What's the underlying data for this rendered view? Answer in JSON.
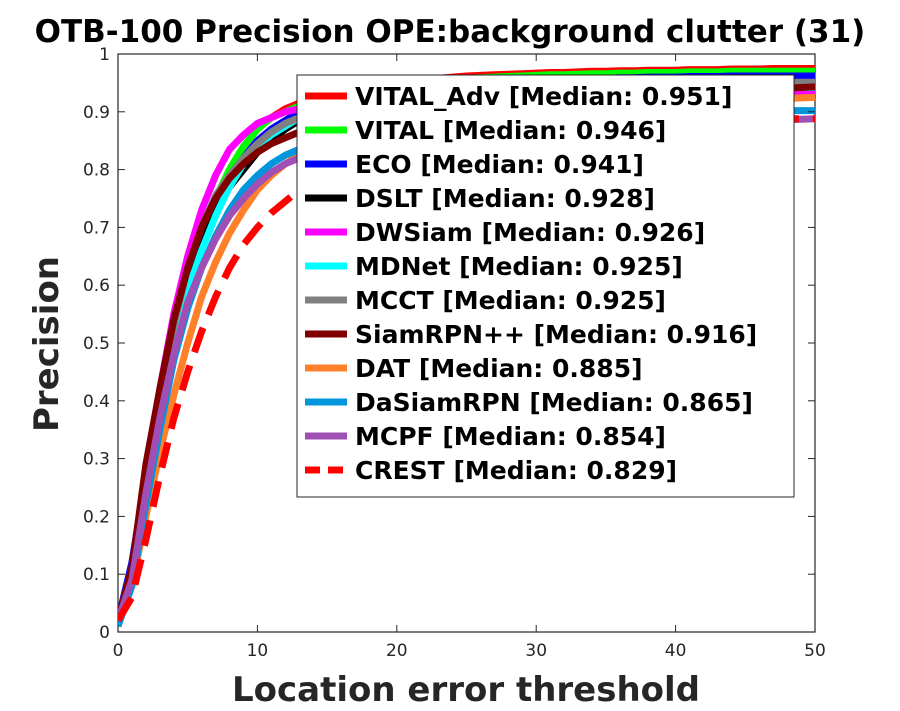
{
  "chart_data": {
    "type": "line",
    "title": "OTB-100 Precision OPE:background clutter (31)",
    "xlabel": "Location error threshold",
    "ylabel": "Precision",
    "xlim": [
      0,
      50
    ],
    "ylim": [
      0,
      1
    ],
    "xticks": [
      "0",
      "10",
      "20",
      "30",
      "40",
      "50"
    ],
    "yticks": [
      "0",
      "0.1",
      "0.2",
      "0.3",
      "0.4",
      "0.5",
      "0.6",
      "0.7",
      "0.8",
      "0.9",
      "1"
    ],
    "grid": false,
    "legend_position": "top-right",
    "x": [
      0,
      1,
      2,
      3,
      4,
      5,
      6,
      7,
      8,
      9,
      10,
      11,
      12,
      13,
      14,
      15,
      16,
      17,
      18,
      19,
      20,
      21,
      22,
      23,
      24,
      25,
      26,
      27,
      28,
      29,
      30,
      31,
      32,
      33,
      34,
      35,
      36,
      37,
      38,
      39,
      40,
      41,
      42,
      43,
      44,
      45,
      46,
      47,
      48,
      49,
      50
    ],
    "series": [
      {
        "name": "VITAL_Adv [Median: 0.951]",
        "color": "#ff0000",
        "dashed": false,
        "values": [
          0.02,
          0.1,
          0.25,
          0.38,
          0.5,
          0.6,
          0.69,
          0.75,
          0.8,
          0.84,
          0.87,
          0.89,
          0.905,
          0.915,
          0.925,
          0.932,
          0.938,
          0.943,
          0.947,
          0.95,
          0.952,
          0.954,
          0.956,
          0.958,
          0.96,
          0.962,
          0.963,
          0.964,
          0.965,
          0.966,
          0.967,
          0.968,
          0.968,
          0.969,
          0.97,
          0.97,
          0.971,
          0.971,
          0.972,
          0.972,
          0.972,
          0.973,
          0.973,
          0.973,
          0.974,
          0.974,
          0.974,
          0.975,
          0.975,
          0.975,
          0.975
        ]
      },
      {
        "name": "VITAL [Median: 0.946]",
        "color": "#00ff00",
        "dashed": false,
        "values": [
          0.02,
          0.1,
          0.25,
          0.38,
          0.5,
          0.6,
          0.68,
          0.75,
          0.8,
          0.84,
          0.87,
          0.89,
          0.9,
          0.91,
          0.92,
          0.928,
          0.934,
          0.938,
          0.942,
          0.945,
          0.948,
          0.95,
          0.952,
          0.954,
          0.956,
          0.958,
          0.959,
          0.96,
          0.961,
          0.962,
          0.963,
          0.964,
          0.964,
          0.965,
          0.966,
          0.966,
          0.967,
          0.967,
          0.968,
          0.968,
          0.968,
          0.969,
          0.969,
          0.969,
          0.97,
          0.97,
          0.97,
          0.97,
          0.97,
          0.97,
          0.97
        ]
      },
      {
        "name": "ECO [Median: 0.941]",
        "color": "#0000ff",
        "dashed": false,
        "values": [
          0.02,
          0.12,
          0.27,
          0.39,
          0.5,
          0.59,
          0.67,
          0.73,
          0.78,
          0.82,
          0.85,
          0.87,
          0.885,
          0.9,
          0.91,
          0.92,
          0.925,
          0.93,
          0.934,
          0.937,
          0.94,
          0.942,
          0.944,
          0.946,
          0.948,
          0.95,
          0.951,
          0.952,
          0.953,
          0.954,
          0.955,
          0.956,
          0.957,
          0.957,
          0.958,
          0.958,
          0.959,
          0.959,
          0.96,
          0.96,
          0.96,
          0.961,
          0.961,
          0.961,
          0.962,
          0.962,
          0.962,
          0.962,
          0.962,
          0.962,
          0.962
        ]
      },
      {
        "name": "DSLT [Median: 0.928]",
        "color": "#000000",
        "dashed": false,
        "values": [
          0.02,
          0.11,
          0.26,
          0.39,
          0.51,
          0.61,
          0.68,
          0.73,
          0.77,
          0.8,
          0.83,
          0.85,
          0.87,
          0.885,
          0.895,
          0.905,
          0.912,
          0.918,
          0.923,
          0.927,
          0.93,
          0.932,
          0.934,
          0.936,
          0.938,
          0.94,
          0.941,
          0.942,
          0.943,
          0.944,
          0.945,
          0.945,
          0.946,
          0.946,
          0.947,
          0.947,
          0.948,
          0.948,
          0.948,
          0.949,
          0.949,
          0.949,
          0.95,
          0.95,
          0.95,
          0.95,
          0.95,
          0.95,
          0.95,
          0.95,
          0.95
        ]
      },
      {
        "name": "DWSiam [Median: 0.926]",
        "color": "#ff00ff",
        "dashed": false,
        "values": [
          0.02,
          0.1,
          0.28,
          0.42,
          0.55,
          0.65,
          0.73,
          0.79,
          0.835,
          0.86,
          0.88,
          0.89,
          0.9,
          0.905,
          0.91,
          0.913,
          0.916,
          0.918,
          0.92,
          0.922,
          0.924,
          0.925,
          0.926,
          0.927,
          0.928,
          0.929,
          0.93,
          0.93,
          0.931,
          0.931,
          0.932,
          0.932,
          0.932,
          0.933,
          0.933,
          0.933,
          0.934,
          0.934,
          0.934,
          0.934,
          0.935,
          0.935,
          0.935,
          0.935,
          0.935,
          0.935,
          0.935,
          0.935,
          0.935,
          0.935,
          0.935
        ]
      },
      {
        "name": "MDNet [Median: 0.925]",
        "color": "#00ffff",
        "dashed": false,
        "values": [
          0.02,
          0.1,
          0.24,
          0.37,
          0.49,
          0.59,
          0.66,
          0.72,
          0.77,
          0.81,
          0.84,
          0.86,
          0.875,
          0.89,
          0.9,
          0.907,
          0.912,
          0.916,
          0.92,
          0.923,
          0.925,
          0.927,
          0.929,
          0.93,
          0.931,
          0.932,
          0.933,
          0.934,
          0.935,
          0.936,
          0.937,
          0.937,
          0.938,
          0.938,
          0.939,
          0.939,
          0.94,
          0.94,
          0.94,
          0.941,
          0.941,
          0.941,
          0.941,
          0.942,
          0.942,
          0.942,
          0.942,
          0.942,
          0.942,
          0.942,
          0.942
        ]
      },
      {
        "name": "MCCT [Median: 0.925]",
        "color": "#808080",
        "dashed": false,
        "values": [
          0.02,
          0.11,
          0.28,
          0.41,
          0.53,
          0.63,
          0.7,
          0.755,
          0.79,
          0.82,
          0.845,
          0.865,
          0.88,
          0.89,
          0.9,
          0.905,
          0.91,
          0.914,
          0.918,
          0.921,
          0.924,
          0.926,
          0.928,
          0.93,
          0.932,
          0.934,
          0.936,
          0.938,
          0.94,
          0.941,
          0.942,
          0.943,
          0.944,
          0.945,
          0.946,
          0.947,
          0.947,
          0.948,
          0.948,
          0.949,
          0.949,
          0.95,
          0.95,
          0.95,
          0.951,
          0.951,
          0.951,
          0.951,
          0.951,
          0.951,
          0.951
        ]
      },
      {
        "name": "SiamRPN++ [Median: 0.916]",
        "color": "#800000",
        "dashed": false,
        "values": [
          0.02,
          0.11,
          0.29,
          0.42,
          0.54,
          0.63,
          0.7,
          0.75,
          0.785,
          0.81,
          0.83,
          0.845,
          0.855,
          0.865,
          0.875,
          0.882,
          0.888,
          0.893,
          0.897,
          0.9,
          0.903,
          0.905,
          0.907,
          0.909,
          0.911,
          0.913,
          0.915,
          0.917,
          0.919,
          0.921,
          0.922,
          0.924,
          0.925,
          0.926,
          0.927,
          0.928,
          0.929,
          0.93,
          0.931,
          0.932,
          0.933,
          0.934,
          0.935,
          0.936,
          0.937,
          0.938,
          0.939,
          0.94,
          0.941,
          0.942,
          0.943
        ]
      },
      {
        "name": "DAT [Median: 0.885]",
        "color": "#ff8028",
        "dashed": false,
        "values": [
          0.02,
          0.08,
          0.2,
          0.31,
          0.41,
          0.5,
          0.58,
          0.64,
          0.69,
          0.73,
          0.765,
          0.79,
          0.81,
          0.825,
          0.84,
          0.85,
          0.86,
          0.866,
          0.872,
          0.877,
          0.881,
          0.884,
          0.887,
          0.889,
          0.891,
          0.893,
          0.895,
          0.897,
          0.899,
          0.901,
          0.903,
          0.904,
          0.906,
          0.907,
          0.908,
          0.91,
          0.911,
          0.912,
          0.913,
          0.914,
          0.915,
          0.916,
          0.917,
          0.918,
          0.919,
          0.92,
          0.921,
          0.922,
          0.923,
          0.924,
          0.925
        ]
      },
      {
        "name": "DaSiamRPN [Median: 0.865]",
        "color": "#0096dc",
        "dashed": false,
        "values": [
          0.01,
          0.08,
          0.22,
          0.35,
          0.47,
          0.56,
          0.63,
          0.685,
          0.73,
          0.765,
          0.79,
          0.81,
          0.825,
          0.835,
          0.845,
          0.852,
          0.858,
          0.863,
          0.867,
          0.87,
          0.873,
          0.876,
          0.878,
          0.88,
          0.882,
          0.884,
          0.886,
          0.888,
          0.889,
          0.89,
          0.891,
          0.892,
          0.893,
          0.894,
          0.895,
          0.896,
          0.897,
          0.898,
          0.898,
          0.899,
          0.899,
          0.9,
          0.9,
          0.901,
          0.901,
          0.901,
          0.902,
          0.902,
          0.902,
          0.902,
          0.902
        ]
      },
      {
        "name": "MCPF [Median: 0.854]",
        "color": "#a050b4",
        "dashed": false,
        "values": [
          0.02,
          0.09,
          0.24,
          0.37,
          0.48,
          0.57,
          0.63,
          0.68,
          0.72,
          0.75,
          0.775,
          0.795,
          0.81,
          0.82,
          0.83,
          0.838,
          0.845,
          0.85,
          0.855,
          0.859,
          0.862,
          0.865,
          0.867,
          0.869,
          0.871,
          0.872,
          0.873,
          0.874,
          0.875,
          0.876,
          0.877,
          0.878,
          0.878,
          0.879,
          0.879,
          0.88,
          0.88,
          0.881,
          0.881,
          0.882,
          0.882,
          0.883,
          0.883,
          0.884,
          0.884,
          0.885,
          0.885,
          0.886,
          0.886,
          0.887,
          0.888
        ]
      },
      {
        "name": "CREST [Median: 0.829]",
        "color": "#ff0000",
        "dashed": true,
        "values": [
          0.02,
          0.06,
          0.16,
          0.27,
          0.37,
          0.45,
          0.52,
          0.58,
          0.63,
          0.67,
          0.7,
          0.725,
          0.745,
          0.765,
          0.78,
          0.792,
          0.802,
          0.81,
          0.817,
          0.823,
          0.828,
          0.833,
          0.837,
          0.841,
          0.845,
          0.849,
          0.852,
          0.855,
          0.858,
          0.861,
          0.864,
          0.866,
          0.868,
          0.87,
          0.872,
          0.874,
          0.876,
          0.877,
          0.879,
          0.88,
          0.881,
          0.882,
          0.883,
          0.884,
          0.885,
          0.886,
          0.887,
          0.887,
          0.888,
          0.888,
          0.888
        ]
      }
    ]
  }
}
